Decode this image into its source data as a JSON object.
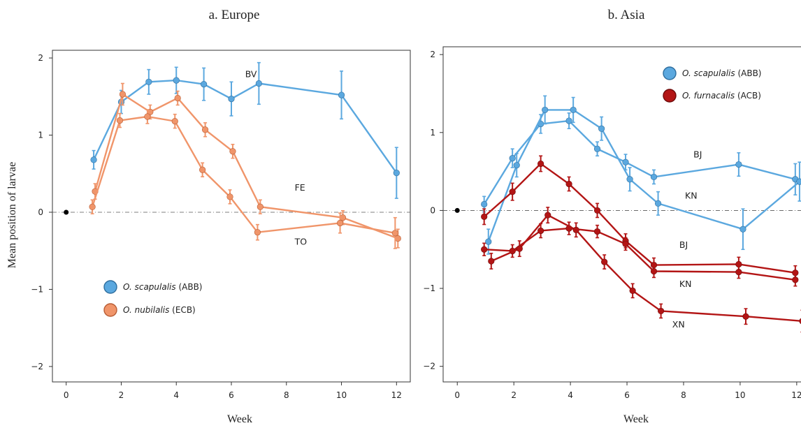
{
  "colors": {
    "abb": "#5ba8df",
    "abb_edge": "#2f6e9e",
    "ecb": "#f0956a",
    "ecb_edge": "#b85d35",
    "acb": "#b31515",
    "acb_edge": "#6e0b0b"
  },
  "shared": {
    "ylabel": "Mean position of larvae",
    "xlabel": "Week"
  },
  "chart_data": [
    {
      "type": "line",
      "title": "a. Europe",
      "xlabel": "Week",
      "ylabel": "Mean position of larvae",
      "xlim": [
        -0.5,
        12.5
      ],
      "ylim": [
        -2.2,
        2.1
      ],
      "xticks": [
        0,
        2,
        4,
        6,
        8,
        10,
        12
      ],
      "yticks": [
        -2,
        -1,
        0,
        1,
        2
      ],
      "ytick_labels": [
        "−2",
        "−1",
        "0",
        "1",
        "2"
      ],
      "reference_line": 0,
      "origin_marker": [
        0,
        0
      ],
      "legend": {
        "position": "bottom-left",
        "entries": [
          {
            "species": "O. scapulalis",
            "code": "(ABB)",
            "color": "abb"
          },
          {
            "species": "O. nubilalis",
            "code": "(ECB)",
            "color": "ecb"
          }
        ]
      },
      "series": [
        {
          "label": "BV",
          "color": "abb",
          "label_at": [
            6.5,
            1.75
          ],
          "points": [
            [
              1,
              0.68,
              0.12
            ],
            [
              2,
              1.43,
              0.15
            ],
            [
              3,
              1.69,
              0.16
            ],
            [
              4,
              1.71,
              0.17
            ],
            [
              5,
              1.66,
              0.21
            ],
            [
              6,
              1.47,
              0.22
            ],
            [
              7,
              1.67,
              0.27
            ],
            [
              10,
              1.52,
              0.31
            ],
            [
              12,
              0.51,
              0.33
            ]
          ]
        },
        {
          "label": "FE",
          "color": "ecb",
          "label_at": [
            8.3,
            0.28
          ],
          "points": [
            [
              1.05,
              0.27,
              0.1
            ],
            [
              2.05,
              1.53,
              0.14
            ],
            [
              3.05,
              1.3,
              0.09
            ],
            [
              4.05,
              1.48,
              0.09
            ],
            [
              5.05,
              1.07,
              0.09
            ],
            [
              6.05,
              0.79,
              0.09
            ],
            [
              7.05,
              0.07,
              0.09
            ],
            [
              10.05,
              -0.07,
              0.09
            ],
            [
              12.05,
              -0.34,
              0.12
            ]
          ]
        },
        {
          "label": "TO",
          "color": "ecb",
          "label_at": [
            8.3,
            -0.42
          ],
          "points": [
            [
              0.95,
              0.07,
              0.09
            ],
            [
              1.95,
              1.19,
              0.09
            ],
            [
              2.95,
              1.24,
              0.09
            ],
            [
              3.95,
              1.18,
              0.09
            ],
            [
              4.95,
              0.55,
              0.09
            ],
            [
              5.95,
              0.2,
              0.09
            ],
            [
              6.95,
              -0.26,
              0.1
            ],
            [
              9.95,
              -0.14,
              0.13
            ],
            [
              11.95,
              -0.27,
              0.2
            ]
          ]
        }
      ]
    },
    {
      "type": "line",
      "title": "b. Asia",
      "xlabel": "Week",
      "ylabel": "",
      "xlim": [
        -0.5,
        12.3
      ],
      "ylim": [
        -2.2,
        2.1
      ],
      "xticks": [
        0,
        2,
        4,
        6,
        8,
        10,
        12
      ],
      "yticks": [
        -2,
        -1,
        0,
        1,
        2
      ],
      "ytick_labels": [
        "−2",
        "−1",
        "0",
        "1",
        "2"
      ],
      "reference_line": 0,
      "origin_marker": [
        0,
        0
      ],
      "legend": {
        "position": "top-right",
        "entries": [
          {
            "species": "O. scapulalis",
            "code": "(ABB)",
            "color": "abb"
          },
          {
            "species": "O. furnacalis",
            "code": "(ACB)",
            "color": "acb"
          }
        ]
      },
      "series": [
        {
          "label": "BJ",
          "color": "abb",
          "label_at": [
            8.35,
            0.68
          ],
          "points": [
            [
              0.95,
              0.08,
              0.1
            ],
            [
              1.95,
              0.67,
              0.12
            ],
            [
              2.95,
              1.11,
              0.12
            ],
            [
              3.95,
              1.15,
              0.1
            ],
            [
              4.95,
              0.79,
              0.09
            ],
            [
              5.95,
              0.62,
              0.1
            ],
            [
              6.95,
              0.43,
              0.09
            ],
            [
              9.95,
              0.59,
              0.15
            ],
            [
              11.95,
              0.4,
              0.2
            ]
          ]
        },
        {
          "label": "KN",
          "color": "abb",
          "label_at": [
            8.05,
            0.15
          ],
          "points": [
            [
              1.1,
              -0.4,
              0.16
            ],
            [
              2.1,
              0.58,
              0.15
            ],
            [
              3.1,
              1.29,
              0.18
            ],
            [
              4.1,
              1.29,
              0.16
            ],
            [
              5.1,
              1.05,
              0.15
            ],
            [
              6.1,
              0.4,
              0.15
            ],
            [
              7.1,
              0.09,
              0.15
            ],
            [
              10.1,
              -0.24,
              0.26
            ],
            [
              12.1,
              0.37,
              0.25
            ]
          ]
        },
        {
          "label": "BJ",
          "color": "acb",
          "label_at": [
            7.85,
            -0.48
          ],
          "points": [
            [
              0.95,
              -0.08,
              0.1
            ],
            [
              1.95,
              0.24,
              0.11
            ],
            [
              2.95,
              0.6,
              0.1
            ],
            [
              3.95,
              0.34,
              0.09
            ],
            [
              4.95,
              0.0,
              0.09
            ],
            [
              5.95,
              -0.39,
              0.09
            ],
            [
              6.95,
              -0.7,
              0.09
            ],
            [
              9.95,
              -0.69,
              0.09
            ],
            [
              11.95,
              -0.8,
              0.09
            ]
          ]
        },
        {
          "label": "KN",
          "color": "acb",
          "label_at": [
            7.85,
            -0.98
          ],
          "points": [
            [
              0.95,
              -0.5,
              0.08
            ],
            [
              1.95,
              -0.52,
              0.08
            ],
            [
              2.95,
              -0.26,
              0.09
            ],
            [
              3.95,
              -0.23,
              0.08
            ],
            [
              4.95,
              -0.27,
              0.08
            ],
            [
              5.95,
              -0.43,
              0.08
            ],
            [
              6.95,
              -0.78,
              0.08
            ],
            [
              9.95,
              -0.79,
              0.08
            ],
            [
              11.95,
              -0.89,
              0.08
            ]
          ]
        },
        {
          "label": "XN",
          "color": "acb",
          "label_at": [
            7.6,
            -1.5
          ],
          "points": [
            [
              1.2,
              -0.65,
              0.1
            ],
            [
              2.2,
              -0.49,
              0.1
            ],
            [
              3.2,
              -0.06,
              0.1
            ],
            [
              4.2,
              -0.25,
              0.09
            ],
            [
              5.2,
              -0.66,
              0.09
            ],
            [
              6.2,
              -1.03,
              0.09
            ],
            [
              7.2,
              -1.29,
              0.09
            ],
            [
              10.2,
              -1.36,
              0.1
            ],
            [
              12.2,
              -1.42,
              0.14
            ]
          ]
        }
      ]
    }
  ]
}
